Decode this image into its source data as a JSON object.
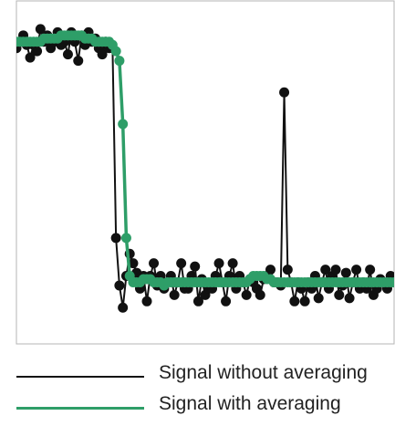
{
  "chart_data": {
    "type": "line",
    "title": "",
    "xlabel": "",
    "ylabel": "",
    "grid": false,
    "legend_position": "bottom",
    "x": [
      0,
      1,
      2,
      3,
      4,
      5,
      6,
      7,
      8,
      9,
      10,
      11,
      12,
      13,
      14,
      15,
      16,
      17,
      18,
      19,
      20,
      21,
      22,
      23,
      24,
      25,
      26,
      27,
      28,
      29,
      30,
      31,
      32,
      33,
      34,
      35,
      36,
      37,
      38,
      39,
      40,
      41,
      42,
      43,
      44,
      45,
      46,
      47,
      48,
      49,
      50,
      51,
      52,
      53,
      54,
      55,
      56,
      57,
      58,
      59,
      60,
      61,
      62,
      63,
      64,
      65,
      66,
      67,
      68,
      69,
      70,
      71,
      72,
      73,
      74,
      75,
      76,
      77,
      78,
      79,
      80,
      81,
      82,
      83,
      84,
      85,
      86,
      87,
      88,
      89,
      90,
      91,
      92,
      93,
      94,
      95,
      96,
      97,
      98,
      99,
      100,
      101,
      102,
      103,
      104,
      105,
      106,
      107,
      108,
      109,
      110
    ],
    "xlim": [
      0,
      110
    ],
    "ylim": [
      0,
      100
    ],
    "series": [
      {
        "name": "Signal without averaging",
        "color": "#111111",
        "values": [
          90,
          92,
          94,
          91,
          87,
          91,
          89,
          96,
          92,
          94,
          90,
          92,
          95,
          91,
          92,
          88,
          95,
          92,
          86,
          94,
          91,
          95,
          92,
          93,
          90,
          88,
          92,
          90,
          90,
          30,
          15,
          8,
          18,
          25,
          22,
          19,
          14,
          18,
          10,
          18,
          22,
          15,
          18,
          14,
          16,
          18,
          12,
          16,
          22,
          14,
          14,
          18,
          21,
          10,
          17,
          12,
          14,
          14,
          18,
          22,
          16,
          10,
          18,
          22,
          14,
          18,
          16,
          12,
          17,
          16,
          14,
          12,
          17,
          18,
          20,
          16,
          16,
          15,
          76,
          20,
          16,
          10,
          16,
          14,
          10,
          16,
          14,
          18,
          11,
          16,
          20,
          14,
          18,
          20,
          12,
          15,
          19,
          11,
          16,
          20,
          14,
          16,
          14,
          20,
          12,
          14,
          17,
          16,
          14,
          18,
          16
        ]
      },
      {
        "name": "Signal with averaging",
        "color": "#2e9e68",
        "values": [
          92,
          92,
          92,
          92,
          92,
          92,
          92,
          92,
          93,
          93,
          93,
          93,
          93,
          94,
          94,
          94,
          94,
          94,
          94,
          94,
          93,
          93,
          93,
          92,
          92,
          92,
          92,
          92,
          91,
          89,
          86,
          66,
          30,
          18,
          16,
          16,
          16,
          17,
          17,
          17,
          16,
          16,
          16,
          15,
          16,
          16,
          16,
          16,
          16,
          16,
          16,
          16,
          16,
          16,
          16,
          16,
          16,
          16,
          16,
          16,
          16,
          16,
          16,
          16,
          16,
          16,
          16,
          16,
          17,
          18,
          18,
          18,
          18,
          17,
          17,
          16,
          16,
          16,
          16,
          16,
          16,
          16,
          16,
          16,
          16,
          16,
          16,
          16,
          16,
          16,
          16,
          16,
          16,
          16,
          16,
          16,
          16,
          16,
          16,
          16,
          16,
          16,
          16,
          16,
          16,
          16,
          16,
          16,
          16,
          16,
          16
        ]
      }
    ]
  }
}
